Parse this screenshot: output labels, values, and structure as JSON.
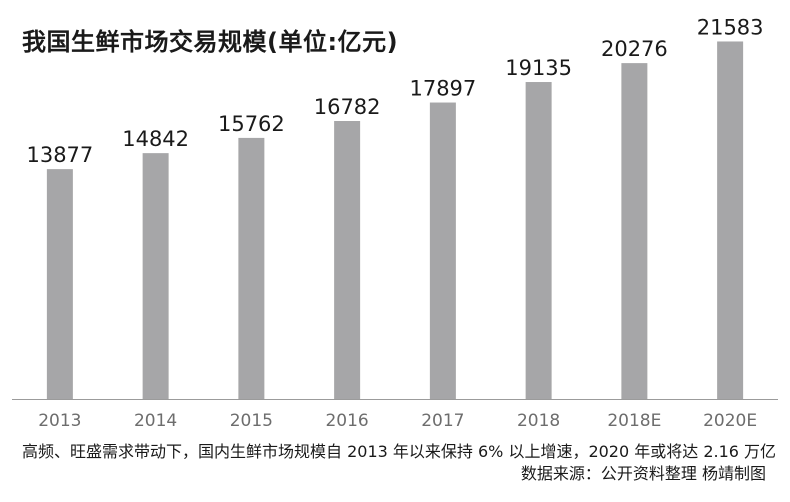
{
  "title": "我国生鲜市场交易规模(单位:亿元)",
  "caption": "高频、旺盛需求带动下，国内生鲜市场规模自 2013 年以来保持 6% 以上增速，2020 年或将达 2.16 万亿",
  "source": "数据来源：公开资料整理 杨靖制图",
  "colors": {
    "bar": "#a6a6a8",
    "axis": "#9b9b9b",
    "tick_text": "#6d6d6d",
    "label_text": "#1a1a1a"
  },
  "chart_data": {
    "type": "bar",
    "title": "我国生鲜市场交易规模(单位:亿元)",
    "categories": [
      "2013",
      "2014",
      "2015",
      "2016",
      "2017",
      "2018",
      "2018E",
      "2020E"
    ],
    "values": [
      13877,
      14842,
      15762,
      16782,
      17897,
      19135,
      20276,
      21583
    ],
    "xlabel": "",
    "ylabel": "",
    "ylim": [
      0,
      23000
    ],
    "grid": false,
    "legend": "none",
    "data_labels": true
  }
}
